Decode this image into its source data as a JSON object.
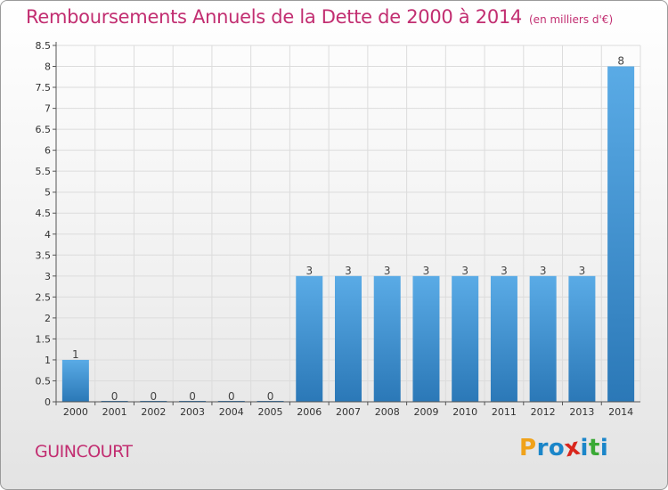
{
  "header": {
    "title": "Remboursements Annuels de la Dette de 2000 à 2014",
    "subtitle": "(en milliers d'€)"
  },
  "footer": {
    "place": "GUINCOURT",
    "logo": {
      "letters": [
        "P",
        "r",
        "o",
        "x",
        "i",
        "t",
        "i"
      ],
      "colors": [
        "#f0a21a",
        "#1b86c9",
        "#1b86c9",
        "#d9261c",
        "#1b86c9",
        "#3aa935",
        "#1b86c9"
      ]
    }
  },
  "colors": {
    "accent": "#c22e71",
    "bar_light": "#5aabe6",
    "bar_dark": "#2b78b7"
  },
  "chart_data": {
    "type": "bar",
    "categories": [
      "2000",
      "2001",
      "2002",
      "2003",
      "2004",
      "2005",
      "2006",
      "2007",
      "2008",
      "2009",
      "2010",
      "2011",
      "2012",
      "2013",
      "2014"
    ],
    "values": [
      1,
      0,
      0,
      0,
      0,
      0,
      3,
      3,
      3,
      3,
      3,
      3,
      3,
      3,
      8
    ],
    "data_labels": [
      "1",
      "0",
      "0",
      "0",
      "0",
      "0",
      "3",
      "3",
      "3",
      "3",
      "3",
      "3",
      "3",
      "3",
      "8"
    ],
    "ylim": [
      0,
      8.5
    ],
    "yticks": [
      0,
      0.5,
      1,
      1.5,
      2,
      2.5,
      3,
      3.5,
      4,
      4.5,
      5,
      5.5,
      6,
      6.5,
      7,
      7.5,
      8,
      8.5
    ],
    "ytick_labels": [
      "0",
      "0.5",
      "1",
      "1.5",
      "2",
      "2.5",
      "3",
      "3.5",
      "4",
      "4.5",
      "5",
      "5.5",
      "6",
      "6.5",
      "7",
      "7.5",
      "8",
      "8.5"
    ],
    "grid": true
  }
}
